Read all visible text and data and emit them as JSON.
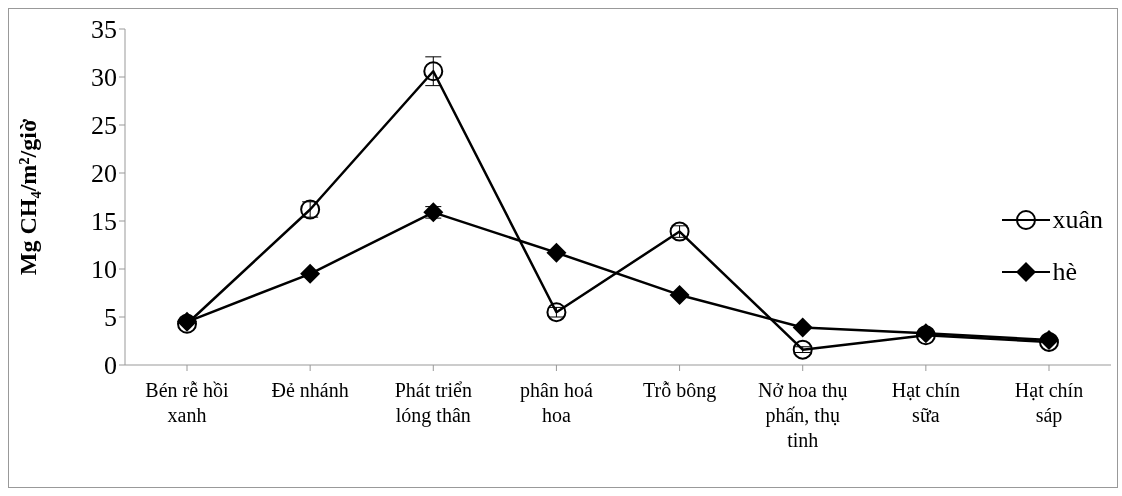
{
  "chart_data": {
    "type": "line",
    "ylabel": "Mg CH₄/m²/giờ",
    "categories": [
      "Bén rễ hồi xanh",
      "Đẻ nhánh",
      "Phát triển lóng thân",
      "phân hoá hoa",
      "Trỗ bông",
      "Nở hoa thụ phấn, thụ tinh",
      "Hạt chín sữa",
      "Hạt chín sáp"
    ],
    "series": [
      {
        "name": "xuân",
        "color": "#000000",
        "marker": "circle",
        "values": [
          4.3,
          16.2,
          30.6,
          5.5,
          13.9,
          1.6,
          3.1,
          2.4
        ],
        "errors": [
          null,
          0.8,
          1.5,
          0.5,
          0.6,
          0.3,
          null,
          null
        ]
      },
      {
        "name": "hè",
        "color": "#000000",
        "marker": "diamond",
        "values": [
          4.5,
          9.5,
          15.9,
          11.7,
          7.3,
          3.9,
          3.3,
          2.6
        ],
        "errors": [
          null,
          null,
          0.6,
          null,
          null,
          null,
          null,
          null
        ]
      }
    ],
    "ylim": [
      0,
      35
    ],
    "yticks": [
      0,
      5,
      10,
      15,
      20,
      25,
      30,
      35
    ],
    "grid": false,
    "legend": "right",
    "line_style": "solid"
  }
}
